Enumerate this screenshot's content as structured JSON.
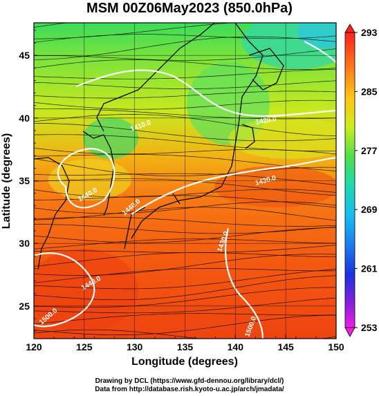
{
  "title": "MSM 00Z06May2023 (850.0hPa)",
  "chart_data": {
    "type": "heatmap",
    "xlabel": "Longitude (degrees)",
    "ylabel": "Latitude  (degrees)",
    "xlim": [
      120,
      150
    ],
    "ylim": [
      22.4,
      47.6
    ],
    "x_ticks": [
      "120",
      "125",
      "130",
      "135",
      "140",
      "145",
      "150"
    ],
    "y_ticks": [
      "25",
      "30",
      "35",
      "40",
      "45"
    ],
    "colorbar": {
      "min": 253,
      "max": 293,
      "ticks": [
        "293",
        "285",
        "277",
        "269",
        "261",
        "253"
      ]
    },
    "contour_labels": [
      "1440.0",
      "1440.0",
      "1440.0",
      "1430.0",
      "1430.0",
      "1420.0",
      "1410.0",
      "1500.0",
      "1500.0"
    ],
    "field_overlay": "streamlines"
  },
  "credits": {
    "line1": "Drawing by DCL (https://www.gfd-dennou.org/library/dcl/)",
    "line2": "Data from http://database.rish.kyoto-u.ac.jp/arch/jmadata/"
  }
}
